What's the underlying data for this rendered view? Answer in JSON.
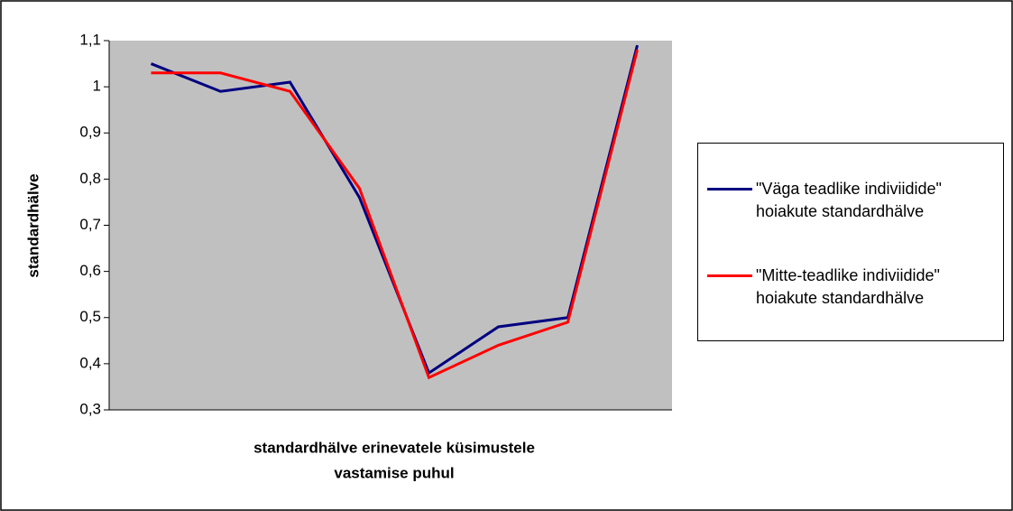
{
  "chart_data": {
    "type": "line",
    "ylabel": "standardhälve",
    "xlabel": [
      "standardhälve erinevatele küsimustele",
      "vastamise puhul"
    ],
    "categories": [
      null,
      null,
      null,
      null,
      null,
      null,
      null,
      null
    ],
    "series": [
      {
        "name": "\"Väga teadlike indiviidide\" hoiakute standardhälve",
        "color": "#000080",
        "values": [
          1.05,
          0.99,
          1.01,
          0.76,
          0.38,
          0.48,
          0.5,
          1.09
        ]
      },
      {
        "name": "\"Mitte-teadlike indiviidide\" hoiakute standardhälve",
        "color": "#ff0000",
        "values": [
          1.03,
          1.03,
          0.99,
          0.78,
          0.37,
          0.44,
          0.49,
          1.08
        ]
      }
    ],
    "ylim": [
      0.3,
      1.1
    ],
    "yticks": [
      {
        "value": 0.3,
        "label": "0,3"
      },
      {
        "value": 0.4,
        "label": "0,4"
      },
      {
        "value": 0.5,
        "label": "0,5"
      },
      {
        "value": 0.6,
        "label": "0,6"
      },
      {
        "value": 0.7,
        "label": "0,7"
      },
      {
        "value": 0.8,
        "label": "0,8"
      },
      {
        "value": 0.9,
        "label": "0,9"
      },
      1,
      {
        "value": 1.1,
        "label": "1,1"
      }
    ],
    "grid": false,
    "plot_background": "#c0c0c0",
    "legend": "right"
  }
}
